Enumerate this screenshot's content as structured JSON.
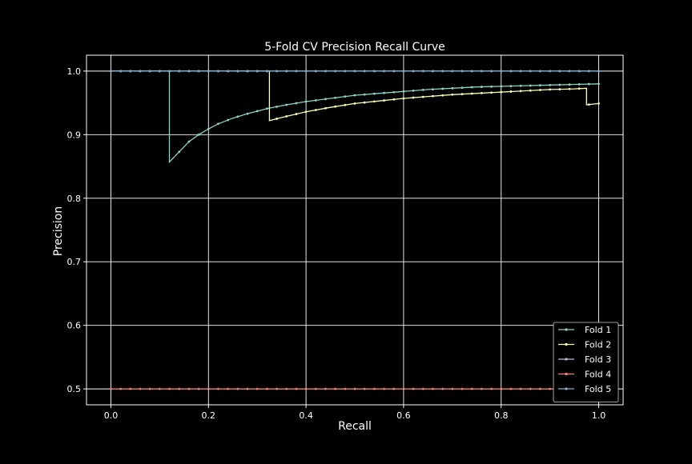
{
  "chart_data": {
    "type": "line",
    "title": "5-Fold CV Precision Recall Curve",
    "xlabel": "Recall",
    "ylabel": "Precision",
    "xlim": [
      -0.05,
      1.05
    ],
    "ylim": [
      0.475,
      1.025
    ],
    "xticks": [
      0.0,
      0.2,
      0.4,
      0.6,
      0.8,
      1.0
    ],
    "xtick_labels": [
      "0.0",
      "0.2",
      "0.4",
      "0.6",
      "0.8",
      "1.0"
    ],
    "yticks": [
      0.5,
      0.6,
      0.7,
      0.8,
      0.9,
      1.0
    ],
    "ytick_labels": [
      "0.5",
      "0.6",
      "0.7",
      "0.8",
      "0.9",
      "1.0"
    ],
    "grid": true,
    "background": "#000000",
    "legend_position": "lower-right",
    "series": [
      {
        "name": "Fold 1",
        "color": "#8dd3c7",
        "x": [
          0.0,
          0.12,
          0.12,
          0.14,
          0.16,
          0.18,
          0.2,
          0.22,
          0.25,
          0.28,
          0.32,
          0.36,
          0.4,
          0.45,
          0.5,
          0.55,
          0.6,
          0.65,
          0.7,
          0.75,
          0.8,
          0.85,
          0.9,
          0.95,
          1.0
        ],
        "y": [
          1.0,
          1.0,
          0.857,
          0.873,
          0.889,
          0.9,
          0.909,
          0.917,
          0.926,
          0.933,
          0.941,
          0.947,
          0.952,
          0.957,
          0.962,
          0.965,
          0.968,
          0.971,
          0.973,
          0.975,
          0.976,
          0.977,
          0.978,
          0.979,
          0.98
        ]
      },
      {
        "name": "Fold 2",
        "color": "#feffb3",
        "x": [
          0.0,
          0.325,
          0.325,
          0.35,
          0.4,
          0.45,
          0.5,
          0.55,
          0.6,
          0.65,
          0.7,
          0.75,
          0.8,
          0.85,
          0.9,
          0.95,
          0.975,
          0.975,
          1.0
        ],
        "y": [
          1.0,
          1.0,
          0.922,
          0.927,
          0.936,
          0.943,
          0.949,
          0.953,
          0.957,
          0.96,
          0.963,
          0.965,
          0.967,
          0.969,
          0.971,
          0.972,
          0.973,
          0.947,
          0.949
        ]
      },
      {
        "name": "Fold 3",
        "color": "#bfbbd9",
        "x": [
          0.0,
          1.0
        ],
        "y": [
          1.0,
          1.0
        ]
      },
      {
        "name": "Fold 4",
        "color": "#fa8174",
        "x": [
          0.0,
          1.0
        ],
        "y": [
          0.5,
          0.5
        ]
      },
      {
        "name": "Fold 5",
        "color": "#81b1d2",
        "x": [
          0.0,
          1.0
        ],
        "y": [
          1.0,
          1.0
        ]
      }
    ]
  }
}
